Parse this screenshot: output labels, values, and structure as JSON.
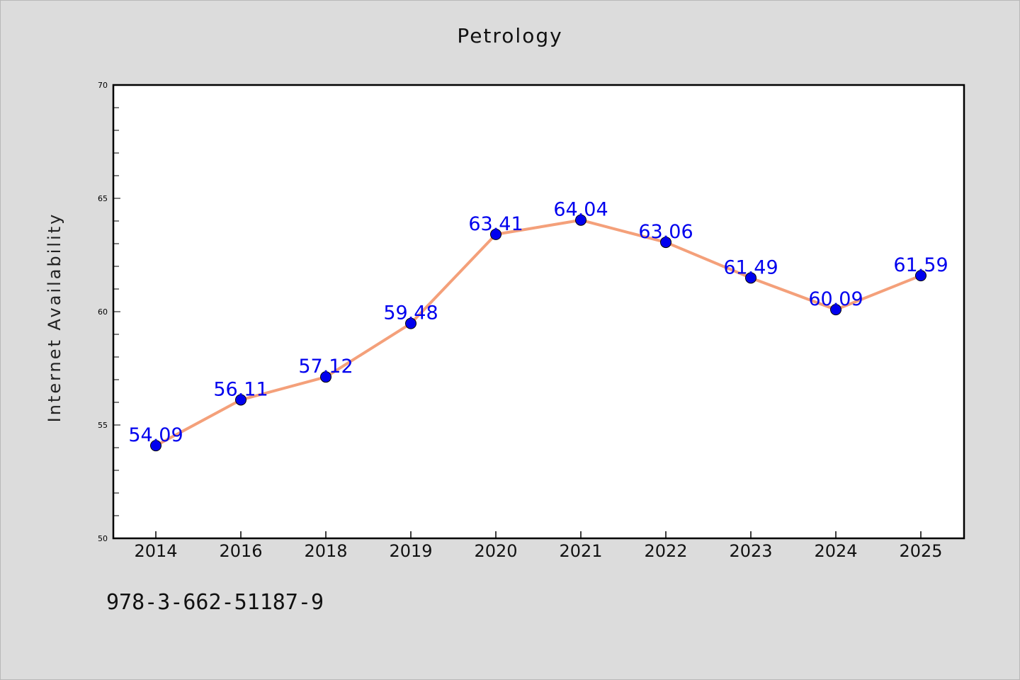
{
  "chart_data": {
    "type": "line",
    "title": "Petrology",
    "xlabel": "",
    "ylabel": "Internet Availability",
    "categories": [
      "2014",
      "2016",
      "2018",
      "2019",
      "2020",
      "2021",
      "2022",
      "2023",
      "2024",
      "2025"
    ],
    "values": [
      54.09,
      56.11,
      57.12,
      59.48,
      63.41,
      64.04,
      63.06,
      61.49,
      60.09,
      61.59
    ],
    "data_labels": [
      "54.09",
      "56.11",
      "57.12",
      "59.48",
      "63.41",
      "64.04",
      "63.06",
      "61.49",
      "60.09",
      "61.59"
    ],
    "ylim": [
      50,
      70
    ],
    "y_ticks": [
      "50",
      "55",
      "60",
      "65",
      "70"
    ],
    "grid": false,
    "legend": "none",
    "line_color": "#f4a07a",
    "marker_color": "#0000ee",
    "label_color": "#0000ee"
  },
  "footer": {
    "isbn": "978-3-662-51187-9"
  }
}
